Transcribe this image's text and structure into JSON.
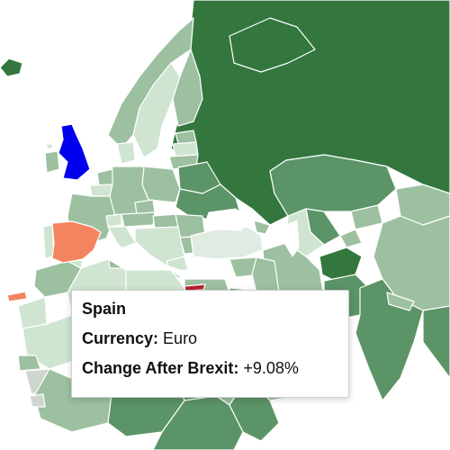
{
  "tooltip": {
    "country": "Spain",
    "currency_label": "Currency:",
    "currency_value": "Euro",
    "change_label": "Change After Brexit:",
    "change_value": "+9.08%"
  },
  "colors": {
    "selected_country": "#f4845f",
    "selected_glow": "#ff9fb0",
    "uk": "#0000ee",
    "dark_green": "#33773f",
    "mid_green": "#5b9467",
    "light_green": "#9cc0a0",
    "pale_green": "#cfe4d1",
    "no_data": "#ffffff"
  }
}
